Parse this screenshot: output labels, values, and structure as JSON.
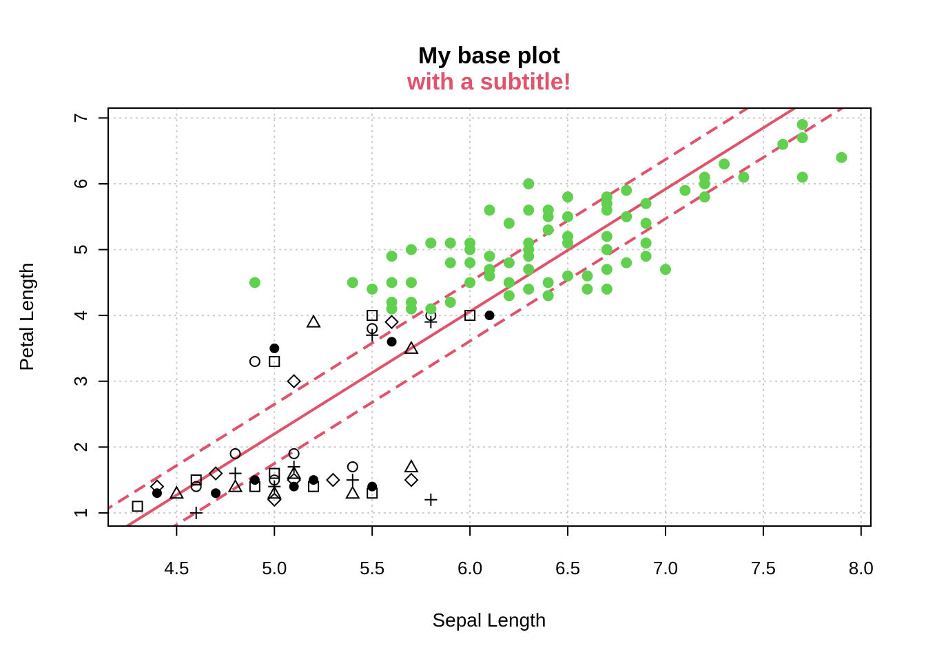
{
  "chart_data": {
    "type": "scatter",
    "title": "My base plot",
    "subtitle": "with a subtitle!",
    "xlabel": "Sepal Length",
    "ylabel": "Petal Length",
    "xlim": [
      4.15,
      8.05
    ],
    "ylim": [
      0.8,
      7.15
    ],
    "x_ticks": [
      4.5,
      5.0,
      5.5,
      6.0,
      6.5,
      7.0,
      7.5,
      8.0
    ],
    "x_tick_labels": [
      "4.5",
      "5.0",
      "5.5",
      "6.0",
      "6.5",
      "7.0",
      "7.5",
      "8.0"
    ],
    "y_ticks": [
      1,
      2,
      3,
      4,
      5,
      6,
      7
    ],
    "y_tick_labels": [
      "1",
      "2",
      "3",
      "4",
      "5",
      "6",
      "7"
    ],
    "grid": true,
    "legend": "none",
    "colors": {
      "points_black": "#000000",
      "points_green": "#61D04F",
      "fit_line": "#DF536B",
      "subtitle": "#DF536B",
      "grid": "#CCCCCC"
    },
    "fit": {
      "intercept": -7.1,
      "slope": 1.86,
      "band_offset": 0.45
    },
    "series": [
      {
        "color": "#000000",
        "points": [
          [
            4.3,
            1.1
          ],
          [
            4.4,
            1.3
          ],
          [
            4.4,
            1.4
          ],
          [
            4.5,
            1.3
          ],
          [
            4.6,
            1.0
          ],
          [
            4.6,
            1.4
          ],
          [
            4.6,
            1.5
          ],
          [
            4.7,
            1.3
          ],
          [
            4.7,
            1.6
          ],
          [
            4.8,
            1.4
          ],
          [
            4.8,
            1.6
          ],
          [
            4.8,
            1.9
          ],
          [
            4.9,
            1.4
          ],
          [
            4.9,
            1.5
          ],
          [
            5.0,
            1.2
          ],
          [
            5.0,
            1.3
          ],
          [
            5.0,
            1.4
          ],
          [
            5.0,
            1.5
          ],
          [
            5.0,
            1.6
          ],
          [
            5.1,
            1.4
          ],
          [
            5.1,
            1.5
          ],
          [
            5.1,
            1.6
          ],
          [
            5.1,
            1.7
          ],
          [
            5.1,
            1.9
          ],
          [
            5.2,
            1.4
          ],
          [
            5.2,
            1.5
          ],
          [
            5.3,
            1.5
          ],
          [
            5.4,
            1.3
          ],
          [
            5.4,
            1.5
          ],
          [
            5.4,
            1.7
          ],
          [
            5.5,
            1.3
          ],
          [
            5.5,
            1.4
          ],
          [
            5.7,
            1.5
          ],
          [
            5.7,
            1.7
          ],
          [
            5.8,
            1.2
          ],
          [
            4.9,
            3.3
          ],
          [
            5.0,
            3.3
          ],
          [
            5.0,
            3.5
          ],
          [
            5.1,
            3.0
          ],
          [
            5.2,
            3.9
          ],
          [
            5.5,
            3.7
          ],
          [
            5.5,
            3.8
          ],
          [
            5.5,
            4.0
          ],
          [
            5.6,
            3.6
          ],
          [
            5.6,
            3.9
          ],
          [
            5.7,
            3.5
          ],
          [
            5.8,
            3.9
          ],
          [
            5.8,
            4.0
          ],
          [
            6.0,
            4.0
          ],
          [
            6.1,
            4.0
          ]
        ]
      },
      {
        "color": "#61D04F",
        "points": [
          [
            4.9,
            4.5
          ],
          [
            5.4,
            4.5
          ],
          [
            5.5,
            4.4
          ],
          [
            5.6,
            4.1
          ],
          [
            5.6,
            4.2
          ],
          [
            5.6,
            4.5
          ],
          [
            5.6,
            4.9
          ],
          [
            5.7,
            4.1
          ],
          [
            5.7,
            4.2
          ],
          [
            5.7,
            4.5
          ],
          [
            5.7,
            5.0
          ],
          [
            5.8,
            4.1
          ],
          [
            5.8,
            5.1
          ],
          [
            5.9,
            4.2
          ],
          [
            5.9,
            4.8
          ],
          [
            5.9,
            5.1
          ],
          [
            6.0,
            4.5
          ],
          [
            6.0,
            4.8
          ],
          [
            6.0,
            5.0
          ],
          [
            6.0,
            5.1
          ],
          [
            6.1,
            4.6
          ],
          [
            6.1,
            4.7
          ],
          [
            6.1,
            4.9
          ],
          [
            6.1,
            5.6
          ],
          [
            6.2,
            4.3
          ],
          [
            6.2,
            4.5
          ],
          [
            6.2,
            4.8
          ],
          [
            6.2,
            5.4
          ],
          [
            6.3,
            4.4
          ],
          [
            6.3,
            4.7
          ],
          [
            6.3,
            4.9
          ],
          [
            6.3,
            5.0
          ],
          [
            6.3,
            5.1
          ],
          [
            6.3,
            5.6
          ],
          [
            6.3,
            6.0
          ],
          [
            6.4,
            4.3
          ],
          [
            6.4,
            4.5
          ],
          [
            6.4,
            5.3
          ],
          [
            6.4,
            5.5
          ],
          [
            6.4,
            5.6
          ],
          [
            6.5,
            4.6
          ],
          [
            6.5,
            5.1
          ],
          [
            6.5,
            5.2
          ],
          [
            6.5,
            5.5
          ],
          [
            6.5,
            5.8
          ],
          [
            6.6,
            4.4
          ],
          [
            6.6,
            4.6
          ],
          [
            6.7,
            4.4
          ],
          [
            6.7,
            4.7
          ],
          [
            6.7,
            5.0
          ],
          [
            6.7,
            5.2
          ],
          [
            6.7,
            5.6
          ],
          [
            6.7,
            5.7
          ],
          [
            6.7,
            5.8
          ],
          [
            6.8,
            4.8
          ],
          [
            6.8,
            5.5
          ],
          [
            6.8,
            5.9
          ],
          [
            6.9,
            4.9
          ],
          [
            6.9,
            5.1
          ],
          [
            6.9,
            5.4
          ],
          [
            6.9,
            5.7
          ],
          [
            7.0,
            4.7
          ],
          [
            7.1,
            5.9
          ],
          [
            7.2,
            5.8
          ],
          [
            7.2,
            6.0
          ],
          [
            7.2,
            6.1
          ],
          [
            7.3,
            6.3
          ],
          [
            7.4,
            6.1
          ],
          [
            7.6,
            6.6
          ],
          [
            7.7,
            6.1
          ],
          [
            7.7,
            6.7
          ],
          [
            7.7,
            6.9
          ],
          [
            7.9,
            6.4
          ]
        ]
      }
    ]
  }
}
